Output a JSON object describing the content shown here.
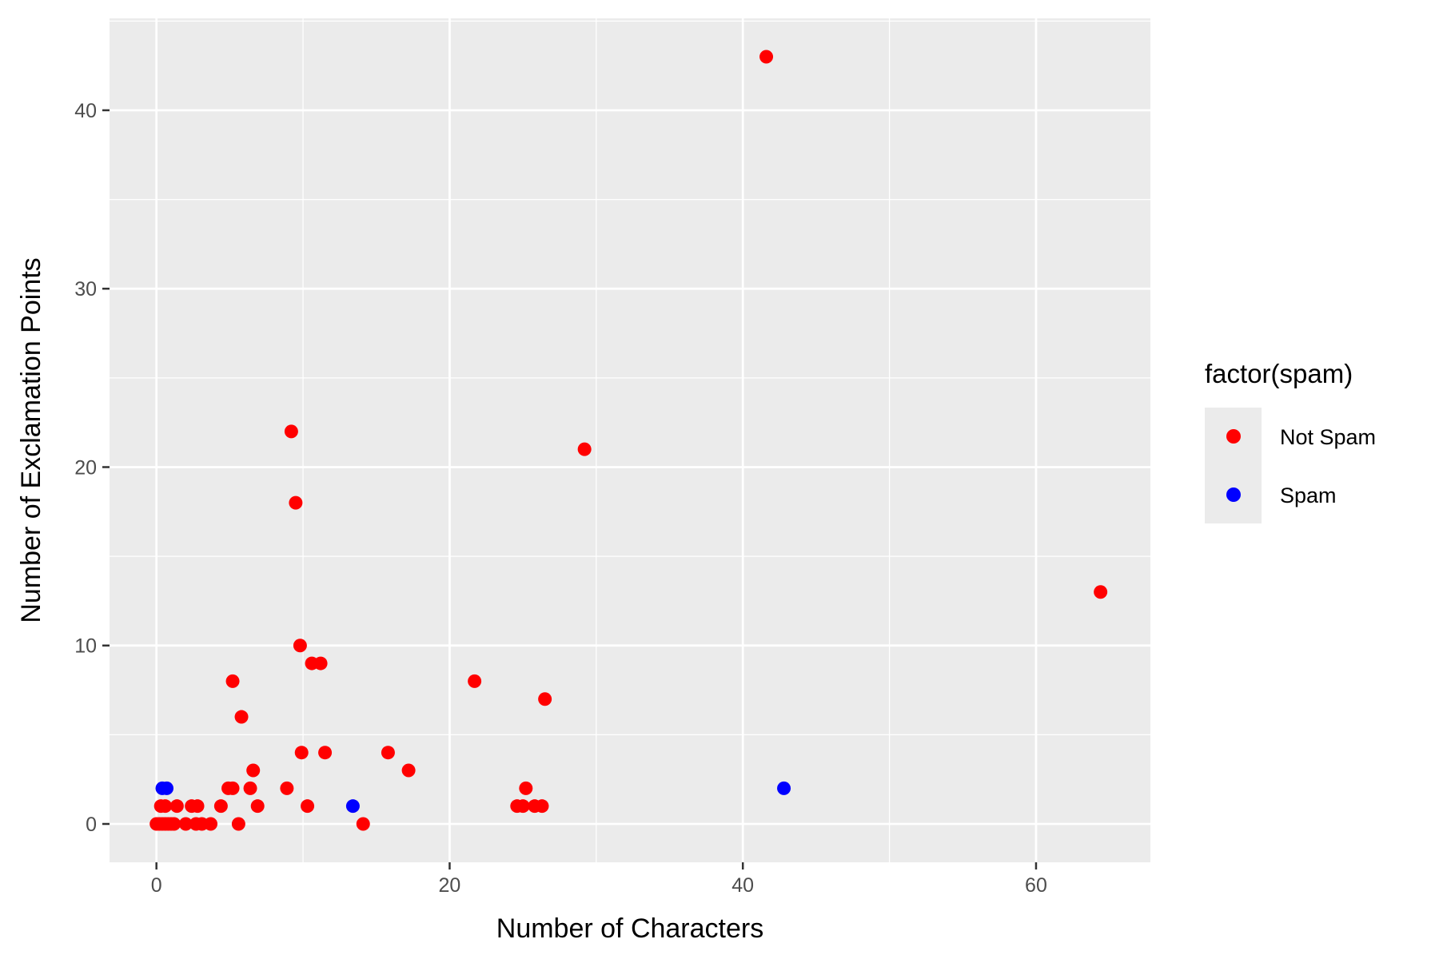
{
  "chart_data": {
    "type": "scatter",
    "xlabel": "Number of Characters",
    "ylabel": "Number of Exclamation Points",
    "xlim": [
      -3.2,
      67.8
    ],
    "ylim": [
      -2.15,
      45.15
    ],
    "x_ticks": [
      0,
      20,
      40,
      60
    ],
    "y_ticks": [
      0,
      10,
      20,
      30,
      40
    ],
    "x_tick_labels": [
      "0",
      "20",
      "40",
      "60"
    ],
    "y_tick_labels": [
      "0",
      "10",
      "20",
      "30",
      "40"
    ],
    "grid": true,
    "legend": {
      "title": "factor(spam)",
      "position": "right"
    },
    "series": [
      {
        "name": "Not Spam",
        "color": "#ff0000",
        "points": [
          [
            0.0,
            0
          ],
          [
            0.2,
            0
          ],
          [
            0.4,
            0
          ],
          [
            0.6,
            0
          ],
          [
            0.8,
            0
          ],
          [
            1.0,
            0
          ],
          [
            1.2,
            0
          ],
          [
            0.3,
            1
          ],
          [
            0.6,
            1
          ],
          [
            1.4,
            1
          ],
          [
            2.0,
            0
          ],
          [
            2.4,
            1
          ],
          [
            2.7,
            0
          ],
          [
            2.8,
            1
          ],
          [
            3.1,
            0
          ],
          [
            3.7,
            0
          ],
          [
            4.4,
            1
          ],
          [
            4.9,
            2
          ],
          [
            5.2,
            2
          ],
          [
            5.2,
            8
          ],
          [
            5.6,
            0
          ],
          [
            5.8,
            6
          ],
          [
            6.4,
            2
          ],
          [
            6.6,
            3
          ],
          [
            6.9,
            1
          ],
          [
            8.9,
            2
          ],
          [
            9.2,
            22
          ],
          [
            9.5,
            18
          ],
          [
            9.8,
            10
          ],
          [
            9.9,
            4
          ],
          [
            10.3,
            1
          ],
          [
            10.6,
            9
          ],
          [
            11.2,
            9
          ],
          [
            11.5,
            4
          ],
          [
            14.1,
            0
          ],
          [
            15.8,
            4
          ],
          [
            17.2,
            3
          ],
          [
            21.7,
            8
          ],
          [
            24.6,
            1
          ],
          [
            25.0,
            1
          ],
          [
            25.2,
            2
          ],
          [
            25.8,
            1
          ],
          [
            26.3,
            1
          ],
          [
            26.5,
            7
          ],
          [
            29.2,
            21
          ],
          [
            41.6,
            43
          ],
          [
            64.4,
            13
          ]
        ]
      },
      {
        "name": "Spam",
        "color": "#0000ff",
        "points": [
          [
            0.4,
            2
          ],
          [
            0.7,
            2
          ],
          [
            13.4,
            1
          ],
          [
            42.8,
            2
          ]
        ]
      }
    ]
  }
}
